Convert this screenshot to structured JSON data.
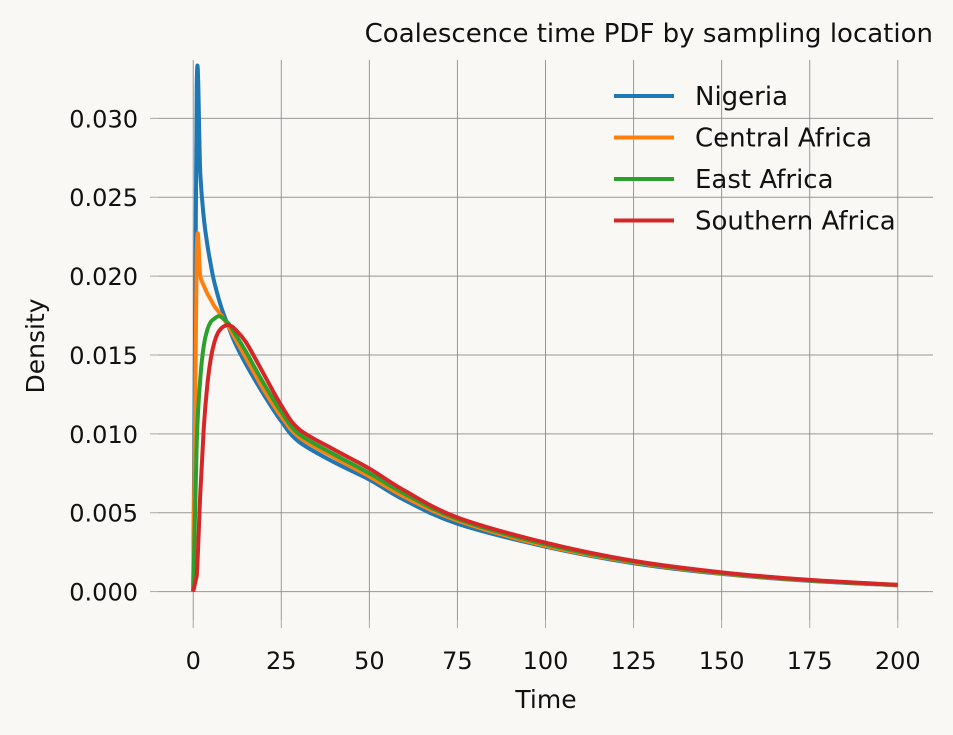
{
  "chart_data": {
    "type": "line",
    "title": "Coalescence time PDF by sampling location",
    "xlabel": "Time",
    "ylabel": "Density",
    "xlim": [
      -10,
      210
    ],
    "ylim": [
      -0.0018,
      0.0337
    ],
    "xticks": [
      0,
      25,
      50,
      75,
      100,
      125,
      150,
      175,
      200
    ],
    "xtick_labels": [
      "0",
      "25",
      "50",
      "75",
      "100",
      "125",
      "150",
      "175",
      "200"
    ],
    "yticks": [
      0.0,
      0.005,
      0.01,
      0.015,
      0.02,
      0.025,
      0.03
    ],
    "ytick_labels": [
      "0.000",
      "0.005",
      "0.010",
      "0.015",
      "0.020",
      "0.025",
      "0.030"
    ],
    "grid": true,
    "legend_position": "top-right",
    "series": [
      {
        "name": "Nigeria",
        "color": "#1f77b4",
        "x": [
          0,
          1,
          2,
          3,
          4,
          5,
          6,
          8,
          10,
          12,
          15,
          20,
          25,
          30,
          40,
          50,
          60,
          75,
          100,
          125,
          150,
          175,
          200
        ],
        "y": [
          0.0,
          0.0321,
          0.0265,
          0.0237,
          0.022,
          0.0207,
          0.0196,
          0.018,
          0.0168,
          0.0157,
          0.0144,
          0.0125,
          0.0108,
          0.0095,
          0.0082,
          0.0071,
          0.0058,
          0.0043,
          0.00285,
          0.0018,
          0.00112,
          0.00068,
          0.0004
        ]
      },
      {
        "name": "Central Africa",
        "color": "#ff7f0e",
        "x": [
          0,
          1,
          2,
          3,
          4,
          5,
          6,
          8,
          10,
          12,
          15,
          20,
          25,
          30,
          40,
          50,
          60,
          75,
          100,
          125,
          150,
          175,
          200
        ],
        "y": [
          0.0,
          0.0215,
          0.02,
          0.0194,
          0.0189,
          0.0185,
          0.0181,
          0.0175,
          0.0168,
          0.016,
          0.0148,
          0.0128,
          0.0111,
          0.0098,
          0.0085,
          0.0073,
          0.006,
          0.0045,
          0.0029,
          0.00185,
          0.00115,
          0.0007,
          0.00041
        ]
      },
      {
        "name": "East Africa",
        "color": "#2ca02c",
        "x": [
          0,
          1,
          2,
          3,
          4,
          5,
          6,
          7,
          8,
          10,
          12,
          15,
          20,
          25,
          30,
          40,
          50,
          60,
          75,
          100,
          125,
          150,
          175,
          200
        ],
        "y": [
          0.0,
          0.0095,
          0.0135,
          0.0156,
          0.0166,
          0.0171,
          0.0173,
          0.01745,
          0.0174,
          0.017,
          0.0163,
          0.0152,
          0.0132,
          0.0114,
          0.01,
          0.0087,
          0.0075,
          0.0062,
          0.0046,
          0.003,
          0.0019,
          0.00118,
          0.00071,
          0.00042
        ]
      },
      {
        "name": "Southern Africa",
        "color": "#d62728",
        "x": [
          0,
          1,
          2,
          3,
          4,
          5,
          6,
          7,
          8,
          9,
          10,
          11,
          12,
          15,
          20,
          25,
          30,
          40,
          50,
          60,
          75,
          100,
          125,
          150,
          175,
          200
        ],
        "y": [
          0.0,
          0.001,
          0.0062,
          0.0104,
          0.0131,
          0.0148,
          0.0158,
          0.0164,
          0.0167,
          0.01685,
          0.0169,
          0.0168,
          0.0166,
          0.0158,
          0.0138,
          0.0118,
          0.0103,
          0.009,
          0.0078,
          0.0064,
          0.0047,
          0.0031,
          0.00195,
          0.00122,
          0.00074,
          0.00043
        ]
      }
    ]
  }
}
